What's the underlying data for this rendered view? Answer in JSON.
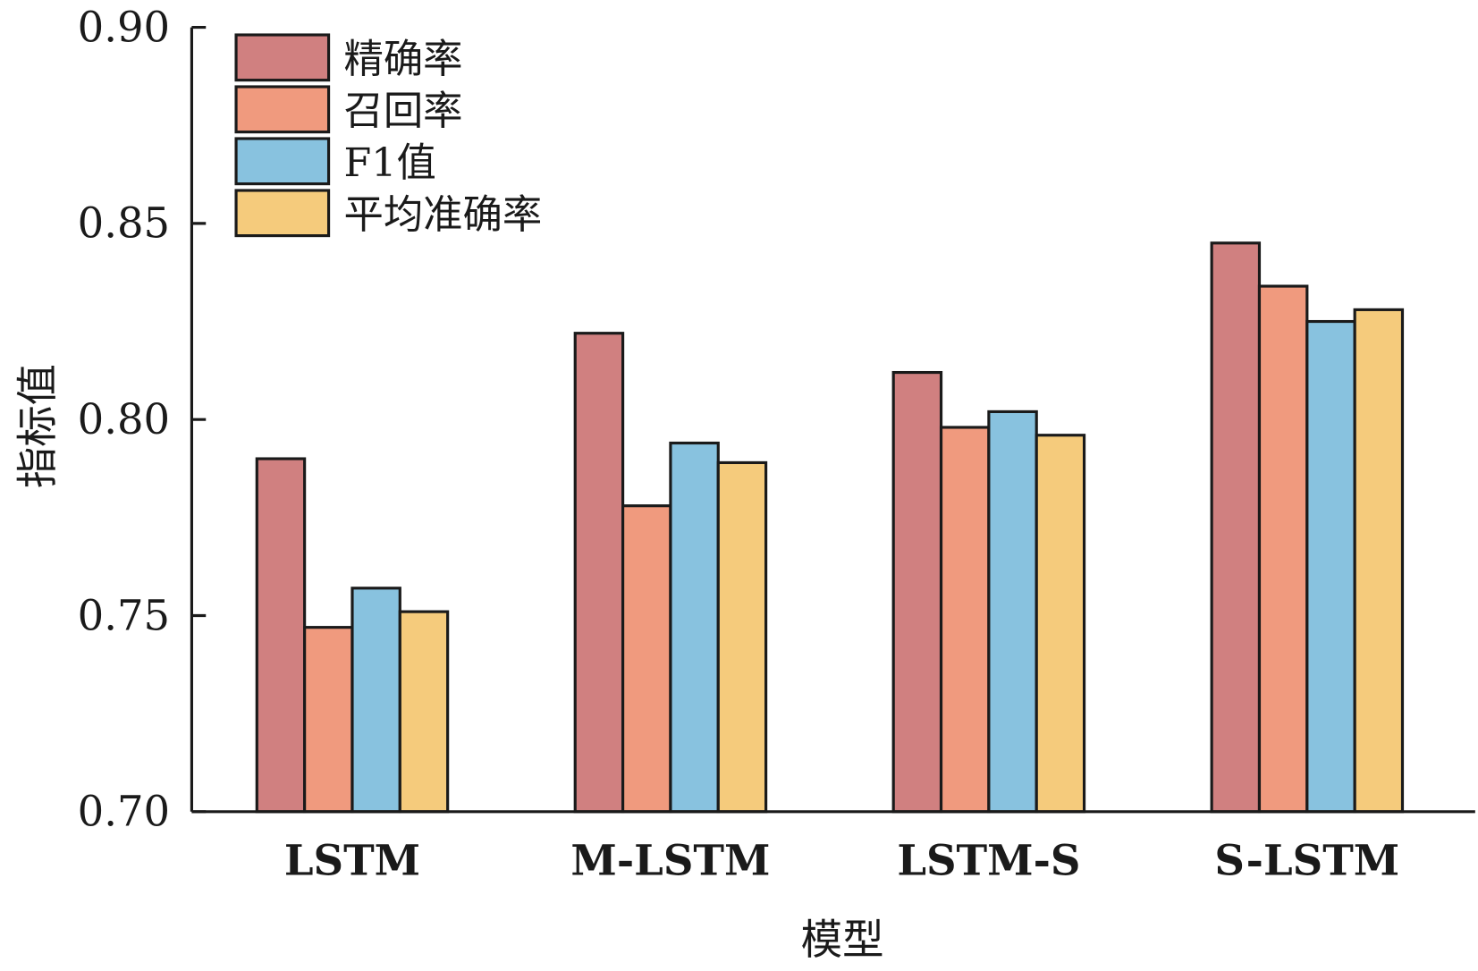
{
  "chart_data": {
    "type": "bar",
    "title": "",
    "xlabel": "模型",
    "ylabel": "指标值",
    "ylim": [
      0.7,
      0.9
    ],
    "yticks": [
      "0.70",
      "0.75",
      "0.80",
      "0.85",
      "0.90"
    ],
    "categories": [
      "LSTM",
      "M-LSTM",
      "LSTM-S",
      "S-LSTM"
    ],
    "legend_position": "top-left",
    "grid": false,
    "series": [
      {
        "name": "精确率",
        "color": "#d08080",
        "values": [
          0.79,
          0.822,
          0.812,
          0.845
        ]
      },
      {
        "name": "召回率",
        "color": "#f09a7e",
        "values": [
          0.747,
          0.778,
          0.798,
          0.834
        ]
      },
      {
        "name": "F1值",
        "color": "#88c2df",
        "values": [
          0.757,
          0.794,
          0.802,
          0.825
        ]
      },
      {
        "name": "平均准确率",
        "color": "#f5cb7c",
        "values": [
          0.751,
          0.789,
          0.796,
          0.828
        ]
      }
    ]
  }
}
